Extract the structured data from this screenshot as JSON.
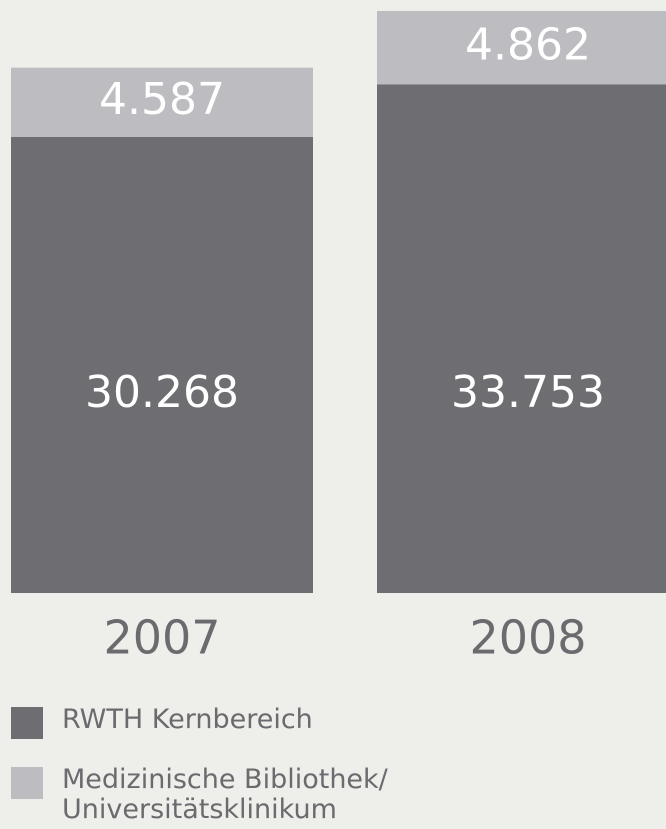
{
  "chart_data": {
    "type": "stacked_bar",
    "categories": [
      "2007",
      "2008"
    ],
    "series": [
      {
        "name": "RWTH Kernbereich",
        "color": "#6e6d72",
        "values": [
          30268,
          33753
        ],
        "value_labels": [
          "30.268",
          "33.753"
        ]
      },
      {
        "name": "Medizinische Bibliothek/\nUniversitätsklinikum",
        "color": "#bdbdc1",
        "values": [
          4587,
          4862
        ],
        "value_labels": [
          "4.587",
          "4.862"
        ]
      }
    ]
  }
}
